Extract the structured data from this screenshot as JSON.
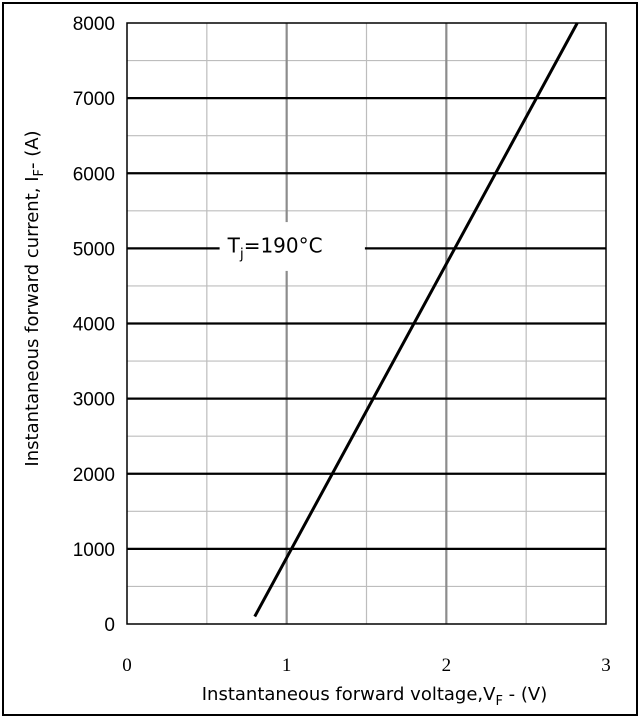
{
  "chart_data": {
    "type": "line",
    "title": "",
    "xlabel": {
      "main": "Instantaneous forward voltage,V",
      "sub": "F",
      "suffix": " - (V)"
    },
    "ylabel": {
      "main": "Instantaneous forward current, I",
      "sub": "F",
      "suffix": "- (A)"
    },
    "xlim": [
      0,
      3
    ],
    "ylim": [
      0,
      8000
    ],
    "x_ticks": [
      "0",
      "1",
      "2",
      "3"
    ],
    "y_ticks": [
      "0",
      "1000",
      "2000",
      "3000",
      "4000",
      "5000",
      "6000",
      "7000",
      "8000"
    ],
    "grid": true,
    "annotation": {
      "main": "T",
      "sub": "j",
      "suffix": "=190°C"
    },
    "series": [
      {
        "x": [
          0.8,
          2.82
        ],
        "y": [
          100,
          8000
        ],
        "color": "#000000"
      }
    ]
  }
}
